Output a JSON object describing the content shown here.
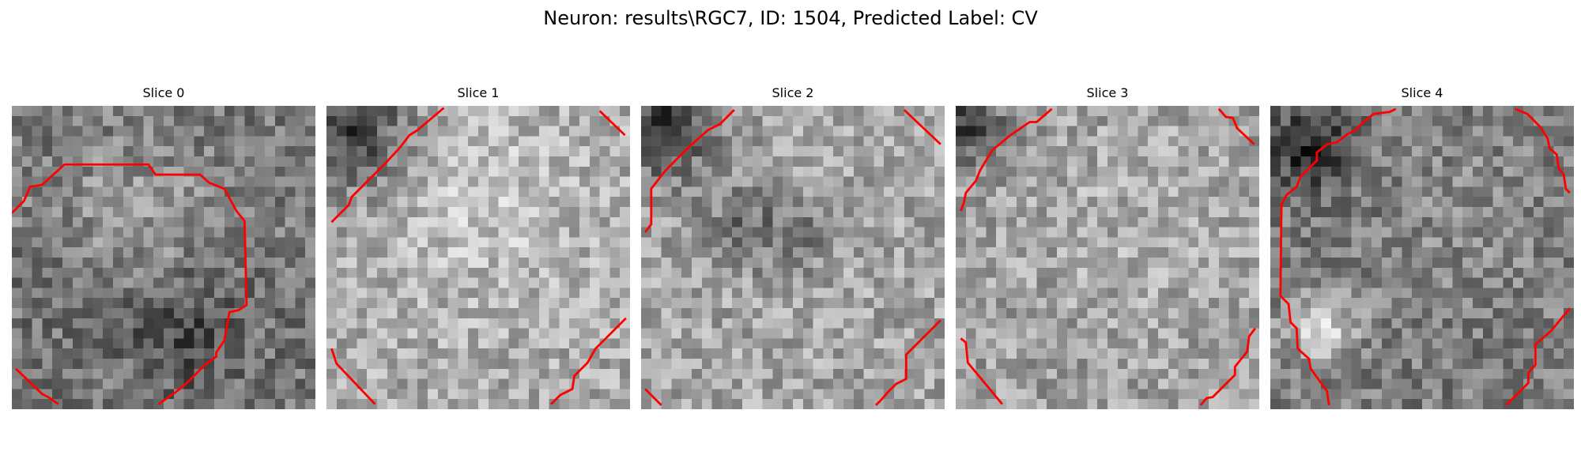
{
  "figure": {
    "title": "Neuron: results\\RGC7, ID: 1504, Predicted Label: CV"
  },
  "panels": [
    {
      "title": "Slice 0"
    },
    {
      "title": "Slice 1"
    },
    {
      "title": "Slice 2"
    },
    {
      "title": "Slice 3"
    },
    {
      "title": "Slice 4"
    }
  ],
  "colors": {
    "contour": "#ff0000",
    "background": "#ffffff"
  }
}
